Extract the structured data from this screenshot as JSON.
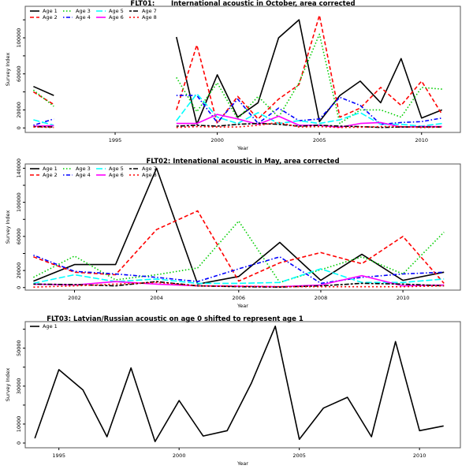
{
  "chart_data": [
    {
      "type": "line",
      "title": "FLT01:       International acoustic in October, area corrected",
      "xlabel": "Year",
      "ylabel": "Survey Index",
      "xlim": [
        1990.6,
        2011.9
      ],
      "ylim": [
        -5000,
        135000
      ],
      "xticks": [
        1995,
        2000,
        2005,
        2010
      ],
      "yticks": [
        0,
        20000,
        40000,
        60000,
        80000,
        100000,
        120000
      ],
      "ytick_labels": [
        "0",
        "20000",
        "",
        "60000",
        "",
        "100000",
        ""
      ],
      "legend_position": "top-left",
      "x": [
        1991,
        1992,
        1993,
        1994,
        1995,
        1996,
        1997,
        1998,
        1999,
        2000,
        2001,
        2002,
        2003,
        2004,
        2005,
        2006,
        2007,
        2008,
        2009,
        2010,
        2011
      ],
      "series": [
        {
          "name": "Age 1",
          "color": "#000000",
          "dash": "solid",
          "values": [
            46000,
            36000,
            null,
            null,
            null,
            null,
            null,
            101000,
            4000,
            59000,
            12000,
            28000,
            100000,
            120000,
            7000,
            36000,
            52000,
            28000,
            77000,
            11000,
            20000
          ]
        },
        {
          "name": "Age 2",
          "color": "#ff0000",
          "dash": "dashed",
          "values": [
            40000,
            26000,
            null,
            null,
            null,
            null,
            null,
            20000,
            92000,
            5000,
            35000,
            10000,
            32000,
            48000,
            125000,
            12000,
            22000,
            45000,
            25000,
            52000,
            15000
          ]
        },
        {
          "name": "Age 3",
          "color": "#00cd00",
          "dash": "dotted",
          "values": [
            42000,
            24000,
            null,
            null,
            null,
            null,
            null,
            56000,
            18000,
            50000,
            10000,
            35000,
            12000,
            50000,
            104000,
            5000,
            20000,
            20000,
            12000,
            45000,
            43000
          ]
        },
        {
          "name": "Age 4",
          "color": "#0000ff",
          "dash": "dotdash",
          "values": [
            3000,
            10000,
            null,
            null,
            null,
            null,
            null,
            36000,
            36000,
            6000,
            32000,
            5000,
            22000,
            8000,
            10000,
            34000,
            25000,
            4000,
            6000,
            7000,
            11000
          ]
        },
        {
          "name": "Age 5",
          "color": "#00ffff",
          "dash": "longdash",
          "values": [
            9000,
            3000,
            null,
            null,
            null,
            null,
            null,
            8000,
            38000,
            12000,
            5000,
            17000,
            5000,
            8000,
            5000,
            9000,
            17000,
            4000,
            4000,
            2000,
            5000
          ]
        },
        {
          "name": "Age 6",
          "color": "#ff00ff",
          "dash": "solid",
          "values": [
            2000,
            2500,
            null,
            null,
            null,
            null,
            null,
            5000,
            5000,
            15000,
            10000,
            4000,
            13000,
            3000,
            3000,
            800,
            5000,
            6000,
            1000,
            1500,
            1500
          ]
        },
        {
          "name": "Age 7",
          "color": "#000000",
          "dash": "twodash",
          "values": [
            1500,
            1000,
            null,
            null,
            null,
            null,
            null,
            2000,
            3000,
            2000,
            4000,
            5000,
            4000,
            2000,
            3000,
            2000,
            1500,
            500,
            1000,
            1000,
            1000
          ]
        },
        {
          "name": "Age 8",
          "color": "#ff0000",
          "dash": "dotted2",
          "values": [
            1000,
            500,
            null,
            null,
            null,
            null,
            null,
            500,
            1500,
            1000,
            1000,
            3000,
            6000,
            1000,
            1500,
            500,
            800,
            1500,
            1500,
            400,
            1000
          ]
        }
      ]
    },
    {
      "type": "line",
      "title": "FLT02: Intenational acoustic in May, area corrected",
      "xlabel": "Year",
      "ylabel": "Survey Index",
      "xlim": [
        2000.8,
        2011.4
      ],
      "ylim": [
        -3000,
        145000
      ],
      "xticks": [
        2002,
        2004,
        2006,
        2008,
        2010
      ],
      "yticks": [
        0,
        20000,
        40000,
        60000,
        80000,
        100000,
        120000,
        140000
      ],
      "ytick_labels": [
        "0",
        "20000",
        "",
        "60000",
        "",
        "100000",
        "",
        "140000"
      ],
      "legend_position": "top-left",
      "x": [
        2001,
        2002,
        2003,
        2004,
        2005,
        2006,
        2007,
        2008,
        2009,
        2010,
        2011
      ],
      "series": [
        {
          "name": "Age 1",
          "color": "#000000",
          "dash": "solid",
          "values": [
            7500,
            27000,
            27000,
            140000,
            4000,
            13000,
            53000,
            8500,
            39000,
            8500,
            18000
          ]
        },
        {
          "name": "Age 2",
          "color": "#ff0000",
          "dash": "dashed",
          "values": [
            36000,
            18000,
            15000,
            68000,
            90000,
            7500,
            29000,
            41000,
            28000,
            60000,
            5000
          ]
        },
        {
          "name": "Age 3",
          "color": "#00cd00",
          "dash": "dotted",
          "values": [
            12000,
            37000,
            9000,
            15000,
            23000,
            78000,
            6000,
            21000,
            36000,
            16000,
            65000
          ]
        },
        {
          "name": "Age 4",
          "color": "#0000ff",
          "dash": "dotdash",
          "values": [
            38000,
            19000,
            16000,
            12000,
            7000,
            22000,
            36000,
            5000,
            12000,
            16000,
            18000
          ]
        },
        {
          "name": "Age 5",
          "color": "#00ffff",
          "dash": "longdash",
          "values": [
            5000,
            15000,
            7000,
            10000,
            5000,
            5000,
            6000,
            22000,
            6000,
            6000,
            10000
          ]
        },
        {
          "name": "Age 6",
          "color": "#ff00ff",
          "dash": "solid",
          "values": [
            4000,
            3000,
            7000,
            4000,
            2000,
            1500,
            1000,
            3000,
            14000,
            2000,
            3000
          ]
        },
        {
          "name": "Age 7",
          "color": "#000000",
          "dash": "twodash",
          "values": [
            4000,
            3500,
            2000,
            7000,
            2000,
            1000,
            500,
            2000,
            5000,
            4000,
            2000
          ]
        },
        {
          "name": "Age 8",
          "color": "#ff0000",
          "dash": "dotted2",
          "values": [
            500,
            2000,
            4000,
            6000,
            2000,
            1500,
            1000,
            1000,
            1000,
            1000,
            2000
          ]
        }
      ]
    },
    {
      "type": "line",
      "title": "FLT03: Latvian/Russian acoustic on age 0 shifted to represent age 1",
      "xlabel": "Year",
      "ylabel": "Survey Index",
      "xlim": [
        1993.6,
        2011.7
      ],
      "ylim": [
        -2500,
        64000
      ],
      "xticks": [
        1995,
        2000,
        2005,
        2010
      ],
      "yticks": [
        0,
        10000,
        20000,
        30000,
        40000,
        50000,
        60000
      ],
      "ytick_labels": [
        "0",
        "10000",
        "",
        "30000",
        "",
        "50000",
        ""
      ],
      "legend_position": "top-left",
      "x": [
        1994,
        1995,
        1996,
        1997,
        1998,
        1999,
        2000,
        2001,
        2002,
        2003,
        2004,
        2005,
        2006,
        2007,
        2008,
        2009,
        2010,
        2011
      ],
      "series": [
        {
          "name": "Age 1",
          "color": "#000000",
          "dash": "solid",
          "values": [
            2500,
            38700,
            28000,
            3300,
            39600,
            800,
            22400,
            3700,
            6500,
            31400,
            61600,
            2000,
            18400,
            24100,
            3300,
            53500,
            6500,
            9000
          ]
        }
      ]
    }
  ]
}
